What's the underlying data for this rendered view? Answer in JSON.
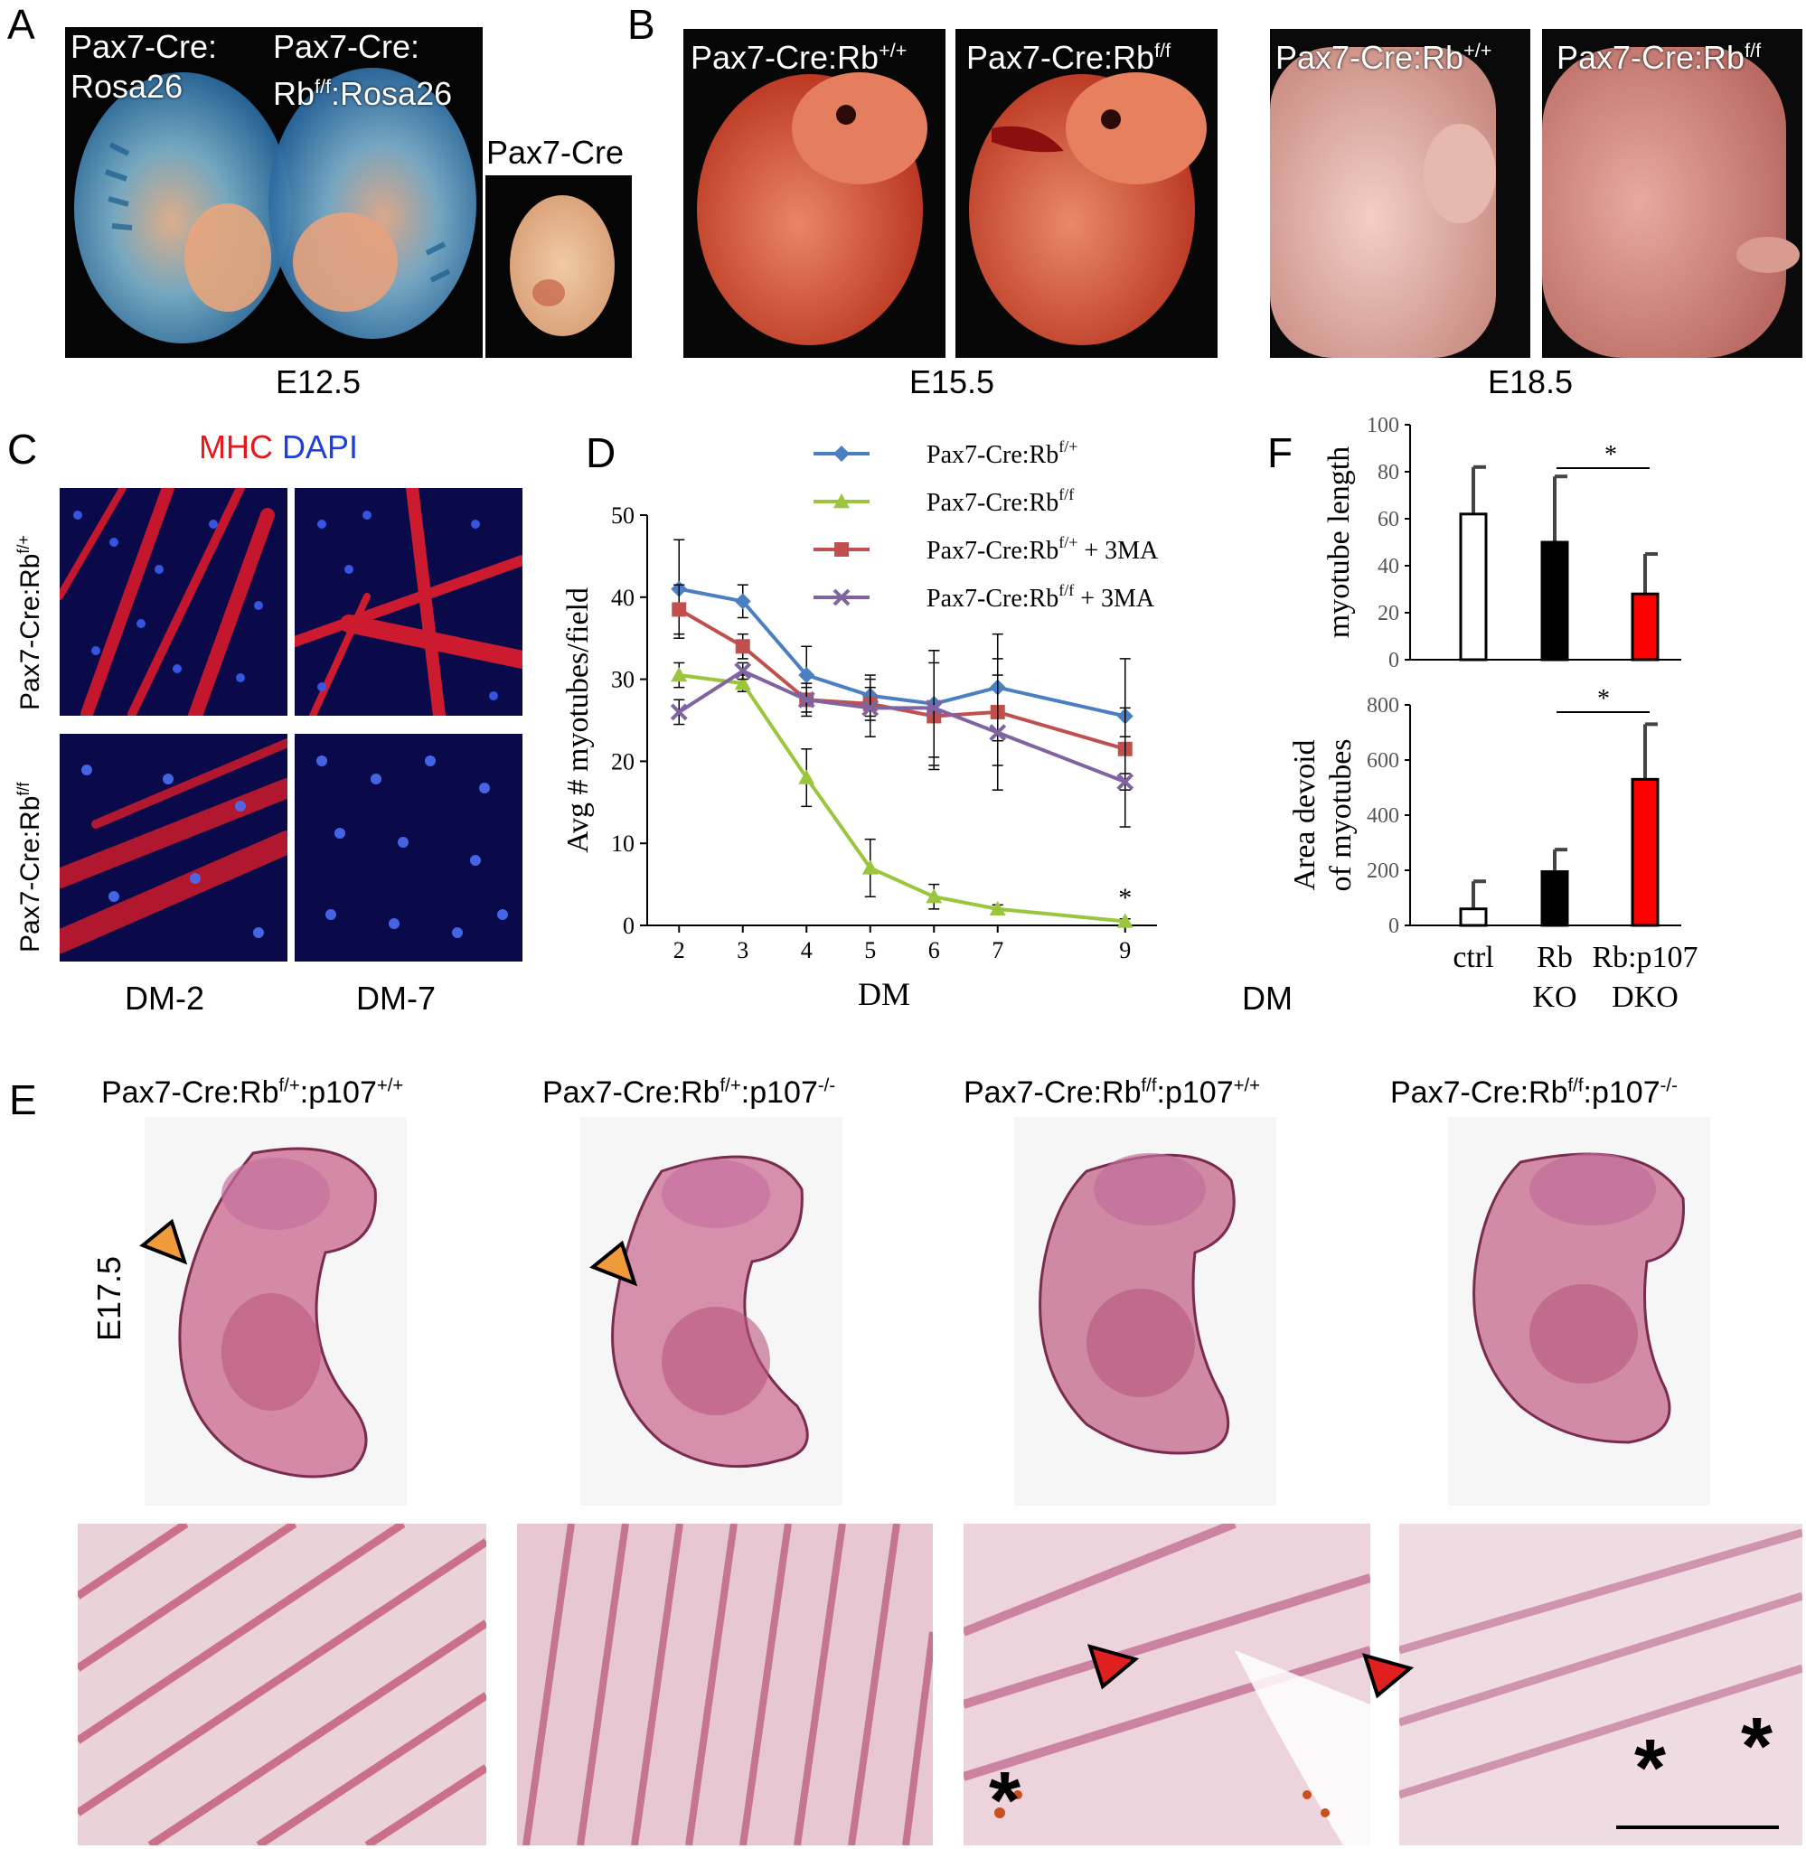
{
  "panels": {
    "A": {
      "letter": "A",
      "labels": [
        "Pax7-Cre:",
        "Rosa26",
        "Pax7-Cre:",
        "Rb",
        "f/f",
        ":Rosa26",
        "Pax7-Cre"
      ],
      "stage": "E12.5"
    },
    "B": {
      "letter": "B",
      "labels_e155": [
        "Pax7-Cre:Rb",
        "+/+",
        "Pax7-Cre:Rb",
        "f/f"
      ],
      "labels_e185": [
        "Pax7-Cre:Rb",
        "+/+",
        "Pax7-Cre:Rb",
        "f/f"
      ],
      "stage_1": "E15.5",
      "stage_2": "E18.5"
    },
    "C": {
      "letter": "C",
      "stain_mhc": "MHC",
      "stain_dapi": "DAPI",
      "row_labels": [
        {
          "base": "Pax7-Cre:Rb",
          "sup": "f/+"
        },
        {
          "base": "Pax7-Cre:Rb",
          "sup": "f/f"
        }
      ],
      "col_labels": [
        "DM-2",
        "DM-7"
      ]
    },
    "D": {
      "letter": "D",
      "extra_label": "DM"
    },
    "E": {
      "letter": "E",
      "stage": "E17.5",
      "genotypes": [
        {
          "a": "Pax7-Cre:Rb",
          "s1": "f/+",
          "b": ":p107",
          "s2": "+/+"
        },
        {
          "a": "Pax7-Cre:Rb",
          "s1": "f/+",
          "b": ":p107",
          "s2": "-/-"
        },
        {
          "a": "Pax7-Cre:Rb",
          "s1": "f/f",
          "b": ":p107",
          "s2": "+/+"
        },
        {
          "a": "Pax7-Cre:Rb",
          "s1": "f/f",
          "b": ":p107",
          "s2": "-/-"
        }
      ],
      "asterisk": "*"
    },
    "F": {
      "letter": "F"
    }
  },
  "colors": {
    "wt_blue": "#4a7fc1",
    "ko_green": "#9bc53d",
    "wt3ma_red": "#c0504d",
    "ko3ma_purple": "#8064a2",
    "bar_red": "#ff0000",
    "he_pink": "#d98aa5"
  },
  "chart_data": [
    {
      "type": "line",
      "panel": "D",
      "xlabel": "DM",
      "ylabel": "Avg # myotubes/field",
      "x": [
        2,
        3,
        4,
        5,
        6,
        7,
        9
      ],
      "ylim": [
        0,
        50
      ],
      "yticks": [
        0,
        10,
        20,
        30,
        40,
        50
      ],
      "legend_position": "top-right",
      "significance": "*",
      "series": [
        {
          "name": "Pax7-Cre:Rb",
          "sup": "f/+",
          "suffix": "",
          "marker": "diamond",
          "color": "#4a7fc1",
          "values": [
            41,
            39.5,
            30.5,
            28,
            27,
            29,
            25.5
          ],
          "errors": [
            6,
            2,
            3.5,
            2.5,
            6.5,
            6.5,
            7
          ]
        },
        {
          "name": "Pax7-Cre:Rb",
          "sup": "f/f",
          "suffix": "",
          "marker": "triangle",
          "color": "#9bc53d",
          "values": [
            30.5,
            29.5,
            18,
            7,
            3.5,
            2,
            0.5
          ],
          "errors": [
            1.5,
            1,
            3.5,
            3.5,
            1.5,
            0.5,
            0.3
          ]
        },
        {
          "name": "Pax7-Cre:Rb",
          "sup": "f/+",
          "suffix": " + 3MA",
          "marker": "square",
          "color": "#c0504d",
          "values": [
            38.5,
            34,
            27.5,
            27,
            25.5,
            26,
            21.5
          ],
          "errors": [
            3,
            1.5,
            1.5,
            2,
            6.5,
            6.5,
            5
          ]
        },
        {
          "name": "Pax7-Cre:Rb",
          "sup": "f/f",
          "suffix": "  + 3MA",
          "marker": "x",
          "color": "#8064a2",
          "values": [
            26,
            31,
            27.5,
            26.5,
            26.5,
            23.5,
            17.5
          ],
          "errors": [
            1.5,
            1,
            2,
            3.5,
            7,
            7,
            5.5
          ]
        }
      ]
    },
    {
      "type": "bar",
      "panel": "F-top",
      "ylabel": "myotube length",
      "categories": [
        "ctrl",
        "Rb KO",
        "Rb:p107 DKO"
      ],
      "values": [
        62,
        50,
        28
      ],
      "errors": [
        20,
        28,
        17
      ],
      "ylim": [
        0,
        100
      ],
      "yticks": [
        0,
        20,
        40,
        60,
        80,
        100
      ],
      "fill": [
        "#ffffff",
        "#000000",
        "#ff0000"
      ],
      "significance": "*"
    },
    {
      "type": "bar",
      "panel": "F-bottom",
      "ylabel_lines": [
        "Area devoid",
        "of myotubes"
      ],
      "categories": [
        "ctrl",
        "Rb KO",
        "Rb:p107 DKO"
      ],
      "category_lines": [
        [
          "ctrl"
        ],
        [
          "Rb",
          "KO"
        ],
        [
          "Rb:p107",
          "DKO"
        ]
      ],
      "values": [
        60,
        195,
        530
      ],
      "errors": [
        100,
        80,
        200
      ],
      "ylim": [
        0,
        800
      ],
      "yticks": [
        0,
        200,
        400,
        600,
        800
      ],
      "fill": [
        "#ffffff",
        "#000000",
        "#ff0000"
      ],
      "significance": "*"
    }
  ]
}
